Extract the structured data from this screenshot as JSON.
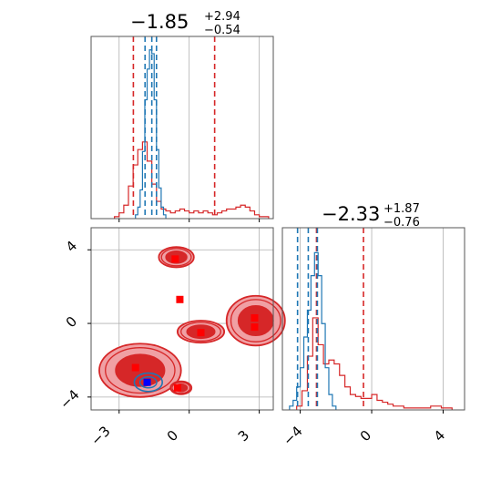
{
  "colors": {
    "samples_a": "#d62728",
    "samples_b": "#1f77b4",
    "marker_red": "#ff0000",
    "marker_blue": "#0000ff",
    "fill_light": "#f0a0a4",
    "fill_dark": "#d62728",
    "grid": "#b0b0b0"
  },
  "chart_data": [
    {
      "panel": "hist-param-1",
      "type": "histogram",
      "title": {
        "main": "−1.85",
        "sup": "+2.94",
        "sub": "−0.54"
      },
      "xlim": [
        -4.2,
        3.6
      ],
      "grid": true,
      "series": [
        {
          "name": "",
          "color": "#d62728",
          "bin_edges": [
            -3.2,
            -3.0,
            -2.8,
            -2.6,
            -2.4,
            -2.2,
            -2.0,
            -1.8,
            -1.6,
            -1.4,
            -1.2,
            -1.0,
            -0.8,
            -0.6,
            -0.4,
            -0.2,
            0.0,
            0.2,
            0.4,
            0.6,
            0.8,
            1.0,
            1.2,
            1.4,
            1.6,
            1.8,
            2.0,
            2.2,
            2.4,
            2.6,
            2.8,
            3.0,
            3.2,
            3.4
          ],
          "counts": [
            0.01,
            0.03,
            0.07,
            0.17,
            0.28,
            0.36,
            0.4,
            0.3,
            0.18,
            0.09,
            0.05,
            0.04,
            0.03,
            0.04,
            0.05,
            0.04,
            0.03,
            0.04,
            0.03,
            0.04,
            0.03,
            0.02,
            0.03,
            0.04,
            0.05,
            0.05,
            0.06,
            0.07,
            0.06,
            0.04,
            0.02,
            0.01,
            0.01
          ]
        },
        {
          "name": "",
          "color": "#1f77b4",
          "bin_edges": [
            -2.3,
            -2.2,
            -2.1,
            -2.0,
            -1.9,
            -1.8,
            -1.7,
            -1.6,
            -1.5,
            -1.4,
            -1.3,
            -1.2,
            -1.1,
            -1.0
          ],
          "counts": [
            0.02,
            0.06,
            0.15,
            0.35,
            0.62,
            0.78,
            0.88,
            0.86,
            0.62,
            0.36,
            0.16,
            0.06,
            0.02
          ]
        }
      ],
      "quantile_lines_red": [
        -2.39,
        1.09
      ],
      "quantile_lines_blue": [
        -1.89,
        -1.4
      ],
      "median_blue": -1.6
    },
    {
      "panel": "hist-param-2",
      "type": "histogram",
      "title": {
        "main": "−2.33",
        "sup": "+1.87",
        "sub": "−0.76"
      },
      "xlim": [
        -5.0,
        5.2
      ],
      "xticks": [
        "−4",
        "0",
        "4"
      ],
      "grid": true,
      "series": [
        {
          "name": "",
          "color": "#d62728",
          "bin_edges": [
            -4.2,
            -3.9,
            -3.6,
            -3.3,
            -3.0,
            -2.7,
            -2.4,
            -2.1,
            -1.8,
            -1.5,
            -1.2,
            -0.9,
            -0.6,
            -0.3,
            0.0,
            0.3,
            0.6,
            0.9,
            1.2,
            1.5,
            1.8,
            2.1,
            2.4,
            2.7,
            3.0,
            3.3,
            3.6,
            3.9,
            4.2,
            4.5
          ],
          "counts": [
            0.02,
            0.1,
            0.28,
            0.48,
            0.34,
            0.24,
            0.26,
            0.24,
            0.18,
            0.12,
            0.08,
            0.07,
            0.06,
            0.06,
            0.08,
            0.05,
            0.04,
            0.03,
            0.02,
            0.02,
            0.01,
            0.01,
            0.01,
            0.01,
            0.01,
            0.02,
            0.02,
            0.01,
            0.01
          ]
        },
        {
          "name": "",
          "color": "#1f77b4",
          "bin_edges": [
            -4.6,
            -4.4,
            -4.2,
            -4.0,
            -3.8,
            -3.6,
            -3.4,
            -3.2,
            -3.0,
            -2.8,
            -2.6,
            -2.4,
            -2.2,
            -2.0
          ],
          "counts": [
            0.02,
            0.05,
            0.12,
            0.22,
            0.38,
            0.52,
            0.7,
            0.82,
            0.7,
            0.45,
            0.22,
            0.08,
            0.02
          ]
        }
      ],
      "quantile_lines_red": [
        -3.09,
        -0.46
      ],
      "quantile_lines_blue": [
        -4.15,
        -3.04
      ],
      "median_blue": -3.55
    },
    {
      "panel": "scatter-2d",
      "type": "scatter",
      "xlim": [
        -4.2,
        3.6
      ],
      "ylim": [
        -4.7,
        5.2
      ],
      "xticks": [
        "−3",
        "0",
        "3"
      ],
      "yticks": [
        "4",
        "0",
        "−4"
      ],
      "grid": true,
      "red_markers": [
        {
          "x": -0.6,
          "y": 3.5
        },
        {
          "x": -0.4,
          "y": 1.3
        },
        {
          "x": 0.5,
          "y": -0.5
        },
        {
          "x": 2.8,
          "y": 0.3
        },
        {
          "x": 2.8,
          "y": -0.2
        },
        {
          "x": -2.3,
          "y": -2.4
        },
        {
          "x": -0.5,
          "y": -3.5
        }
      ],
      "blue_markers": [
        {
          "x": -1.8,
          "y": -3.2
        }
      ],
      "contour_blobs": [
        {
          "cx": -0.55,
          "cy": 3.6,
          "rx": 0.75,
          "ry": 0.55
        },
        {
          "cx": 0.5,
          "cy": -0.45,
          "rx": 1.0,
          "ry": 0.6
        },
        {
          "cx": 2.85,
          "cy": 0.15,
          "rx": 1.25,
          "ry": 1.35
        },
        {
          "cx": -2.1,
          "cy": -2.55,
          "rx": 1.75,
          "ry": 1.45
        },
        {
          "cx": -0.35,
          "cy": -3.5,
          "rx": 0.45,
          "ry": 0.35
        }
      ],
      "blue_contour": {
        "cx": -1.75,
        "cy": -3.2,
        "rx": 0.6,
        "ry": 0.5
      }
    }
  ]
}
